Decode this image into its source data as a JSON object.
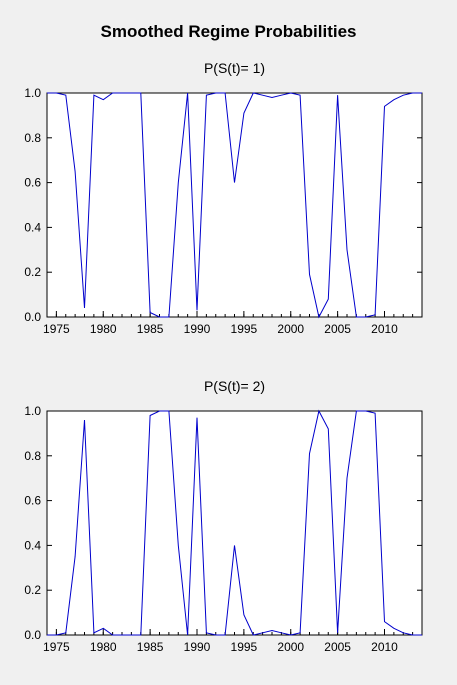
{
  "title": "Smoothed Regime Probabilities",
  "line_color": "#0000cc",
  "chart_data": [
    {
      "type": "line",
      "title": "P(S(t)= 1)",
      "xlim": [
        1974,
        2014
      ],
      "ylim": [
        0,
        1
      ],
      "xticks": [
        1975,
        1980,
        1985,
        1990,
        1995,
        2000,
        2005,
        2010
      ],
      "xtick_labels": [
        "1975",
        "1980",
        "1985",
        "1990",
        "1995",
        "2000",
        "2005",
        "2010"
      ],
      "yticks": [
        0,
        0.2,
        0.4,
        0.6,
        0.8,
        1.0
      ],
      "ytick_labels": [
        "0.0",
        "0.2",
        "0.4",
        "0.6",
        "0.8",
        "1.0"
      ],
      "x": [
        1974,
        1975,
        1976,
        1977,
        1978,
        1979,
        1980,
        1981,
        1982,
        1983,
        1984,
        1985,
        1986,
        1987,
        1988,
        1989,
        1990,
        1991,
        1992,
        1993,
        1994,
        1995,
        1996,
        1997,
        1998,
        1999,
        2000,
        2001,
        2002,
        2003,
        2004,
        2005,
        2006,
        2007,
        2008,
        2009,
        2010,
        2011,
        2012,
        2013,
        2014
      ],
      "series": [
        {
          "values": [
            1.0,
            1.0,
            0.99,
            0.65,
            0.04,
            0.99,
            0.97,
            1.0,
            1.0,
            1.0,
            1.0,
            0.02,
            0.0,
            0.0,
            0.6,
            1.0,
            0.03,
            0.99,
            1.0,
            1.0,
            0.6,
            0.91,
            1.0,
            0.99,
            0.98,
            0.99,
            1.0,
            0.99,
            0.19,
            0.0,
            0.08,
            0.99,
            0.3,
            0.0,
            0.0,
            0.01,
            0.94,
            0.97,
            0.99,
            1.0,
            1.0
          ]
        }
      ]
    },
    {
      "type": "line",
      "title": "P(S(t)= 2)",
      "xlim": [
        1974,
        2014
      ],
      "ylim": [
        0,
        1
      ],
      "xticks": [
        1975,
        1980,
        1985,
        1990,
        1995,
        2000,
        2005,
        2010
      ],
      "xtick_labels": [
        "1975",
        "1980",
        "1985",
        "1990",
        "1995",
        "2000",
        "2005",
        "2010"
      ],
      "yticks": [
        0,
        0.2,
        0.4,
        0.6,
        0.8,
        1.0
      ],
      "ytick_labels": [
        "0.0",
        "0.2",
        "0.4",
        "0.6",
        "0.8",
        "1.0"
      ],
      "x": [
        1974,
        1975,
        1976,
        1977,
        1978,
        1979,
        1980,
        1981,
        1982,
        1983,
        1984,
        1985,
        1986,
        1987,
        1988,
        1989,
        1990,
        1991,
        1992,
        1993,
        1994,
        1995,
        1996,
        1997,
        1998,
        1999,
        2000,
        2001,
        2002,
        2003,
        2004,
        2005,
        2006,
        2007,
        2008,
        2009,
        2010,
        2011,
        2012,
        2013,
        2014
      ],
      "series": [
        {
          "values": [
            0.0,
            0.0,
            0.01,
            0.35,
            0.96,
            0.01,
            0.03,
            0.0,
            0.0,
            0.0,
            0.0,
            0.98,
            1.0,
            1.0,
            0.4,
            0.0,
            0.97,
            0.01,
            0.0,
            0.0,
            0.4,
            0.09,
            0.0,
            0.01,
            0.02,
            0.01,
            0.0,
            0.01,
            0.81,
            1.0,
            0.92,
            0.01,
            0.7,
            1.0,
            1.0,
            0.99,
            0.06,
            0.03,
            0.01,
            0.0,
            0.0
          ]
        }
      ]
    }
  ]
}
